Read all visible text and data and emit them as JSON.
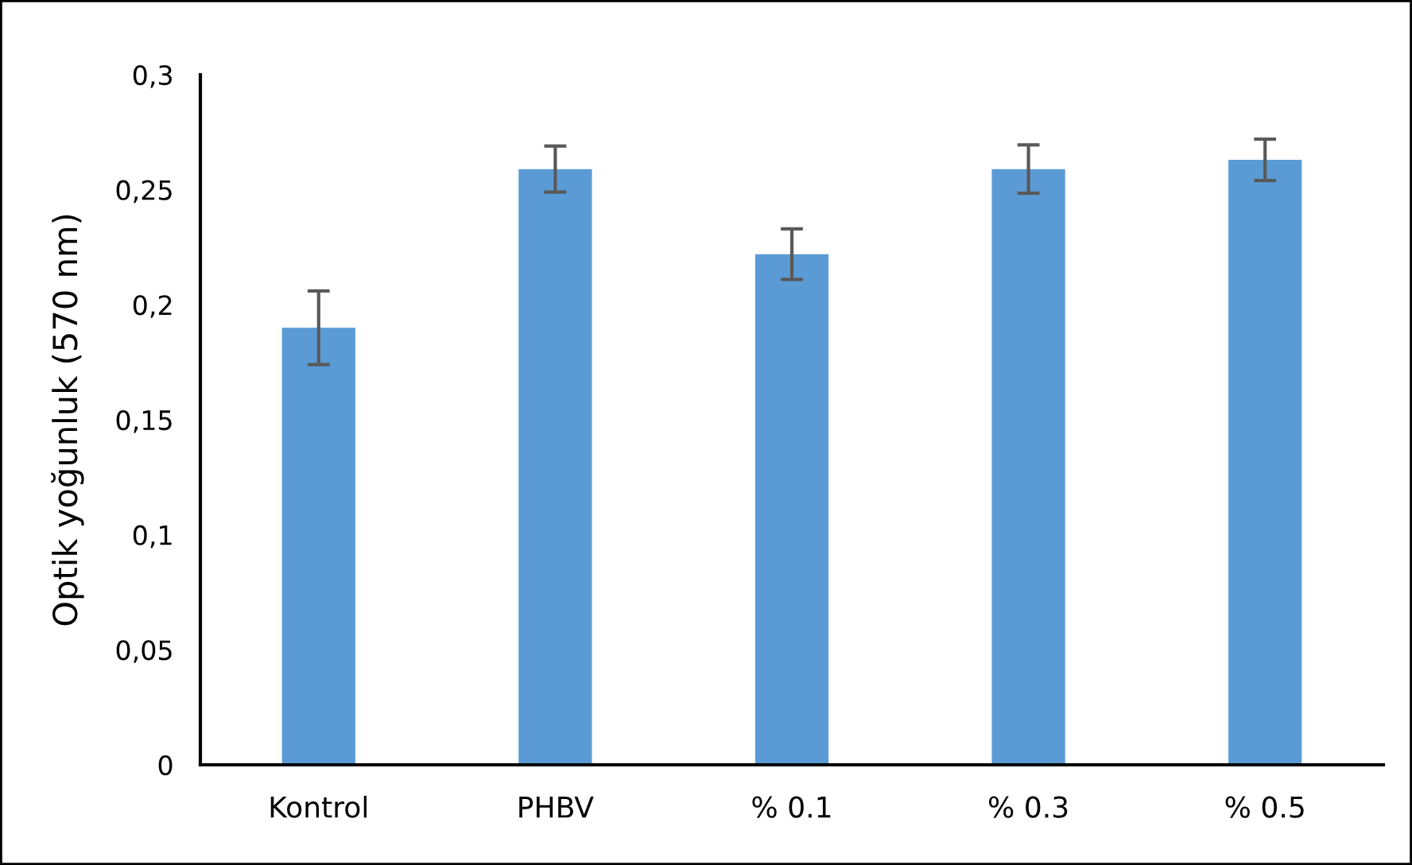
{
  "chart_data": {
    "type": "bar",
    "ylabel": "Optik yoğunluk (570 nm)",
    "categories": [
      "Kontrol",
      "PHBV",
      "% 0.1",
      "% 0.3",
      "% 0.5"
    ],
    "values": [
      0.19,
      0.259,
      0.222,
      0.259,
      0.263
    ],
    "errors": [
      0.016,
      0.01,
      0.011,
      0.0105,
      0.009
    ],
    "color": "#5b9bd5",
    "ylim": [
      0,
      0.3
    ],
    "yticks": [
      {
        "value": 0,
        "label": "0"
      },
      {
        "value": 0.05,
        "label": "0,05"
      },
      {
        "value": 0.1,
        "label": "0,1"
      },
      {
        "value": 0.15,
        "label": "0,15"
      },
      {
        "value": 0.2,
        "label": "0,2"
      },
      {
        "value": 0.25,
        "label": "0,25"
      },
      {
        "value": 0.3,
        "label": "0,3"
      }
    ],
    "grid": false,
    "legend": false
  }
}
